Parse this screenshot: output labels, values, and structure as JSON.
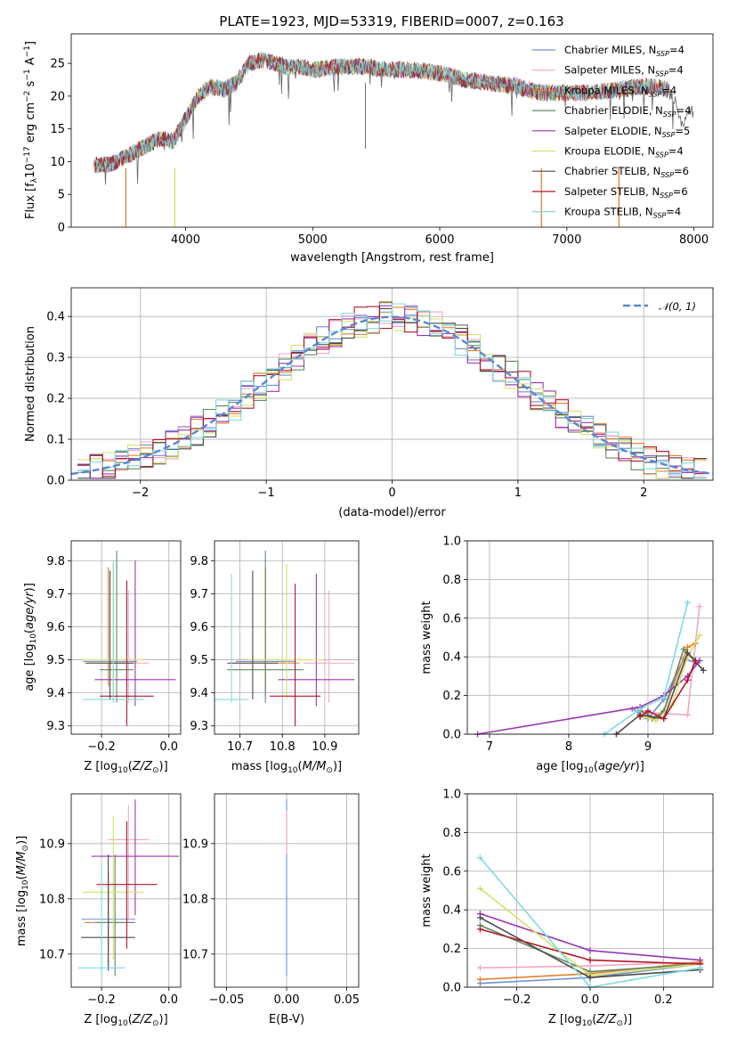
{
  "page": {
    "title": "PLATE=1923, MJD=53319, FIBERID=0007, z=0.163"
  },
  "colors": [
    "#6f8fd8",
    "#f2a5c9",
    "#e8802e",
    "#5f8b5f",
    "#9a37b0",
    "#d6e06a",
    "#4a4a4a",
    "#b2182b",
    "#7fdbe0"
  ],
  "chart_data": [
    {
      "id": "spectrum",
      "type": "line",
      "title": "PLATE=1923, MJD=53319, FIBERID=0007, z=0.163",
      "xlabel": "wavelength [Angstrom, rest frame]",
      "ylabel": "Flux [f_λ 10^-17 erg cm^-2 s^-1 A^-1]",
      "xlim": [
        3100,
        8150
      ],
      "ylim": [
        0,
        29.5
      ],
      "xticks": [
        4000,
        5000,
        6000,
        7000,
        8000
      ],
      "yticks": [
        0,
        5,
        10,
        15,
        20,
        25
      ],
      "grid": false,
      "legend_position": "top-right",
      "data_spectrum": {
        "x": [
          3280,
          3400,
          3500,
          3600,
          3700,
          3800,
          3900,
          4000,
          4100,
          4200,
          4300,
          4400,
          4500,
          4600,
          4700,
          4800,
          4900,
          5000,
          5200,
          5400,
          5600,
          5800,
          6000,
          6200,
          6400,
          6600,
          6800,
          7000,
          7200,
          7400,
          7600,
          7700,
          7800,
          7850,
          7900,
          7950,
          8000
        ],
        "y": [
          9.5,
          9.5,
          10.5,
          11.5,
          12.5,
          13.5,
          13.0,
          16.5,
          20.0,
          21.5,
          21.0,
          22.0,
          25.0,
          25.5,
          25.0,
          24.5,
          24.5,
          24.0,
          24.5,
          24.5,
          24.0,
          24.0,
          23.5,
          22.5,
          22.0,
          21.5,
          20.5,
          20.5,
          20.5,
          21.0,
          21.5,
          21.5,
          21.0,
          19.5,
          15.5,
          18.0,
          17.5
        ]
      },
      "series": [
        {
          "name": "Chabrier MILES, N_SSP=4",
          "color": "#6f8fd8"
        },
        {
          "name": "Salpeter MILES, N_SSP=4",
          "color": "#f2a5c9"
        },
        {
          "name": "Kroupa MILES, N_SSP=4",
          "color": "#e8802e"
        },
        {
          "name": "Chabrier ELODIE, N_SSP=4",
          "color": "#5f8b5f"
        },
        {
          "name": "Salpeter ELODIE, N_SSP=5",
          "color": "#9a37b0"
        },
        {
          "name": "Kroupa ELODIE, N_SSP=4",
          "color": "#d6e06a"
        },
        {
          "name": "Chabrier STELIB, N_SSP=6",
          "color": "#4a4a4a"
        },
        {
          "name": "Salpeter STELIB, N_SSP=6",
          "color": "#b2182b"
        },
        {
          "name": "Kroupa STELIB, N_SSP=4",
          "color": "#7fdbe0"
        }
      ]
    },
    {
      "id": "residuals",
      "type": "line",
      "xlabel": "(data-model)/error",
      "ylabel": "Normed distribution",
      "xlim": [
        -2.55,
        2.55
      ],
      "ylim": [
        0,
        0.47
      ],
      "xticks": [
        -2,
        -1,
        0,
        1,
        2
      ],
      "yticks": [
        0.0,
        0.1,
        0.2,
        0.3,
        0.4
      ],
      "grid": true,
      "legend_position": "top-right",
      "legend": "𝒩(0, 1)",
      "hist_centers": [
        -2.45,
        -2.35,
        -2.25,
        -2.15,
        -2.05,
        -1.95,
        -1.85,
        -1.75,
        -1.65,
        -1.55,
        -1.45,
        -1.35,
        -1.25,
        -1.15,
        -1.05,
        -0.95,
        -0.85,
        -0.75,
        -0.65,
        -0.55,
        -0.45,
        -0.35,
        -0.25,
        -0.15,
        -0.05,
        0.05,
        0.15,
        0.25,
        0.35,
        0.45,
        0.55,
        0.65,
        0.75,
        0.85,
        0.95,
        1.05,
        1.15,
        1.25,
        1.35,
        1.45,
        1.55,
        1.65,
        1.75,
        1.85,
        1.95,
        2.05,
        2.15,
        2.25,
        2.35,
        2.45
      ]
    },
    {
      "id": "age_vs_Z",
      "type": "scatter",
      "xlabel": "Z [log10(Z/Z⊙)]",
      "ylabel": "age [log10(age/yr)]",
      "xlim": [
        -0.29,
        0.035
      ],
      "ylim": [
        9.275,
        9.86
      ],
      "xticks": [
        -0.2,
        0.0
      ],
      "yticks": [
        9.3,
        9.4,
        9.5,
        9.6,
        9.7,
        9.8
      ],
      "points": [
        {
          "x": -0.175,
          "y": 9.495,
          "xerr": 0.08,
          "ylo": 9.39,
          "yhi": 9.77
        },
        {
          "x": -0.12,
          "y": 9.49,
          "xerr": 0.06,
          "ylo": 9.37,
          "yhi": 9.71
        },
        {
          "x": -0.18,
          "y": 9.49,
          "xerr": 0.07,
          "ylo": 9.42,
          "yhi": 9.78
        },
        {
          "x": -0.155,
          "y": 9.47,
          "xerr": 0.05,
          "ylo": 9.37,
          "yhi": 9.83
        },
        {
          "x": -0.1,
          "y": 9.44,
          "xerr": 0.12,
          "ylo": 9.36,
          "yhi": 9.8
        },
        {
          "x": -0.165,
          "y": 9.5,
          "xerr": 0.09,
          "ylo": 9.38,
          "yhi": 9.79
        },
        {
          "x": -0.175,
          "y": 9.49,
          "xerr": 0.07,
          "ylo": 9.38,
          "yhi": 9.77
        },
        {
          "x": -0.125,
          "y": 9.39,
          "xerr": 0.08,
          "ylo": 9.3,
          "yhi": 9.74
        },
        {
          "x": -0.165,
          "y": 9.38,
          "xerr": 0.09,
          "ylo": 9.37,
          "yhi": 9.8
        }
      ]
    },
    {
      "id": "age_vs_mass",
      "type": "scatter",
      "xlabel": "mass [log10(M/M⊙)]",
      "ylabel": "",
      "xlim": [
        10.64,
        10.98
      ],
      "ylim": [
        9.275,
        9.86
      ],
      "xticks": [
        10.7,
        10.8,
        10.9
      ],
      "yticks": [
        9.3,
        9.4,
        9.5,
        9.6,
        9.7,
        9.8
      ],
      "points": [
        {
          "x": 10.76,
          "y": 9.495,
          "xerr": 0.07,
          "ylo": 9.39,
          "yhi": 9.77
        },
        {
          "x": 10.91,
          "y": 9.49,
          "xerr": 0.06,
          "ylo": 9.37,
          "yhi": 9.71
        },
        {
          "x": 10.76,
          "y": 9.49,
          "xerr": 0.08,
          "ylo": 9.42,
          "yhi": 9.78
        },
        {
          "x": 10.76,
          "y": 9.47,
          "xerr": 0.09,
          "ylo": 9.37,
          "yhi": 9.83
        },
        {
          "x": 10.88,
          "y": 9.44,
          "xerr": 0.09,
          "ylo": 9.36,
          "yhi": 9.76
        },
        {
          "x": 10.81,
          "y": 9.5,
          "xerr": 0.09,
          "ylo": 9.38,
          "yhi": 9.79
        },
        {
          "x": 10.73,
          "y": 9.49,
          "xerr": 0.06,
          "ylo": 9.38,
          "yhi": 9.77
        },
        {
          "x": 10.83,
          "y": 9.39,
          "xerr": 0.06,
          "ylo": 9.3,
          "yhi": 9.73
        },
        {
          "x": 10.68,
          "y": 9.38,
          "xerr": 0.04,
          "ylo": 9.37,
          "yhi": 9.76
        }
      ]
    },
    {
      "id": "weight_vs_age",
      "type": "line",
      "xlabel": "age [log10(age/yr)]",
      "ylabel": "mass weight",
      "xlim": [
        6.72,
        9.82
      ],
      "ylim": [
        0,
        1.0
      ],
      "xticks": [
        7,
        8,
        9
      ],
      "yticks": [
        0.0,
        0.2,
        0.4,
        0.6,
        0.8,
        1.0
      ],
      "grid": true,
      "lines": [
        {
          "color": "#6f8fd8",
          "x": [
            8.8,
            9.0,
            9.2,
            9.45,
            9.6
          ],
          "y": [
            0.13,
            0.08,
            0.18,
            0.39,
            0.37
          ]
        },
        {
          "color": "#f2a5c9",
          "x": [
            8.85,
            9.0,
            9.5,
            9.65
          ],
          "y": [
            0.13,
            0.11,
            0.1,
            0.66
          ]
        },
        {
          "color": "#e8802e",
          "x": [
            8.9,
            9.05,
            9.2,
            9.5,
            9.6
          ],
          "y": [
            0.1,
            0.08,
            0.12,
            0.45,
            0.47
          ]
        },
        {
          "color": "#5f8b5f",
          "x": [
            8.9,
            9.1,
            9.2,
            9.45,
            9.6
          ],
          "y": [
            0.12,
            0.08,
            0.12,
            0.44,
            0.38
          ]
        },
        {
          "color": "#9a37b0",
          "x": [
            6.85,
            8.9,
            9.2,
            9.5,
            9.65
          ],
          "y": [
            0.0,
            0.14,
            0.2,
            0.3,
            0.38
          ]
        },
        {
          "color": "#d6e06a",
          "x": [
            8.95,
            9.1,
            9.3,
            9.5,
            9.65
          ],
          "y": [
            0.09,
            0.07,
            0.15,
            0.4,
            0.51
          ]
        },
        {
          "color": "#4a4a4a",
          "x": [
            8.6,
            8.9,
            9.2,
            9.5,
            9.7
          ],
          "y": [
            0.0,
            0.1,
            0.08,
            0.42,
            0.33
          ]
        },
        {
          "color": "#b2182b",
          "x": [
            8.9,
            9.0,
            9.2,
            9.5,
            9.6
          ],
          "y": [
            0.09,
            0.12,
            0.08,
            0.28,
            0.38
          ]
        },
        {
          "color": "#7fdbe0",
          "x": [
            8.45,
            8.9,
            9.2,
            9.5
          ],
          "y": [
            0.0,
            0.13,
            0.19,
            0.68
          ]
        }
      ]
    },
    {
      "id": "mass_vs_Z",
      "type": "scatter",
      "xlabel": "Z [log10(Z/Z⊙)]",
      "ylabel": "mass [log10(M/M⊙)]",
      "xlim": [
        -0.29,
        0.035
      ],
      "ylim": [
        10.64,
        10.99
      ],
      "xticks": [
        -0.2,
        0.0
      ],
      "yticks": [
        10.7,
        10.8,
        10.9
      ],
      "points": [
        {
          "x": -0.18,
          "y": 10.763,
          "xerr": 0.08,
          "ylo": 10.67,
          "yhi": 10.85
        },
        {
          "x": -0.12,
          "y": 10.907,
          "xerr": 0.06,
          "ylo": 10.76,
          "yhi": 10.97
        },
        {
          "x": -0.18,
          "y": 10.757,
          "xerr": 0.07,
          "ylo": 10.7,
          "yhi": 10.85
        },
        {
          "x": -0.16,
          "y": 10.757,
          "xerr": 0.06,
          "ylo": 10.66,
          "yhi": 10.88
        },
        {
          "x": -0.1,
          "y": 10.877,
          "xerr": 0.13,
          "ylo": 10.77,
          "yhi": 10.98
        },
        {
          "x": -0.165,
          "y": 10.812,
          "xerr": 0.09,
          "ylo": 10.69,
          "yhi": 10.95
        },
        {
          "x": -0.18,
          "y": 10.73,
          "xerr": 0.08,
          "ylo": 10.67,
          "yhi": 10.88
        },
        {
          "x": -0.125,
          "y": 10.826,
          "xerr": 0.09,
          "ylo": 10.71,
          "yhi": 10.94
        },
        {
          "x": -0.2,
          "y": 10.675,
          "xerr": 0.07,
          "ylo": 10.66,
          "yhi": 10.86
        }
      ]
    },
    {
      "id": "mass_vs_ebv",
      "type": "scatter",
      "xlabel": "E(B-V)",
      "ylabel": "",
      "xlim": [
        -0.06,
        0.06
      ],
      "ylim": [
        10.64,
        10.99
      ],
      "xticks": [
        -0.05,
        0.0,
        0.05
      ],
      "yticks": [
        10.7,
        10.8,
        10.9
      ],
      "points": [
        {
          "x": 0.0,
          "y": 10.84,
          "xerr": 0.0,
          "ylo": 10.66,
          "yhi": 10.98
        },
        {
          "x": 0.0,
          "y": 10.93,
          "xerr": 0.0,
          "ylo": 10.88,
          "yhi": 10.96
        }
      ]
    },
    {
      "id": "weight_vs_Z",
      "type": "line",
      "xlabel": "Z [log10(Z/Z⊙)]",
      "ylabel": "mass weight",
      "xlim": [
        -0.335,
        0.335
      ],
      "ylim": [
        0,
        1.0
      ],
      "xticks": [
        -0.2,
        0.0,
        0.2
      ],
      "yticks": [
        0.0,
        0.2,
        0.4,
        0.6,
        0.8,
        1.0
      ],
      "grid": true,
      "lines": [
        {
          "color": "#6f8fd8",
          "x": [
            -0.3,
            0.0,
            0.3
          ],
          "y": [
            0.02,
            0.05,
            0.12
          ]
        },
        {
          "color": "#f2a5c9",
          "x": [
            -0.3,
            0.0,
            0.3
          ],
          "y": [
            0.1,
            0.11,
            0.13
          ]
        },
        {
          "color": "#e8802e",
          "x": [
            -0.3,
            0.0,
            0.3
          ],
          "y": [
            0.04,
            0.07,
            0.13
          ]
        },
        {
          "color": "#5f8b5f",
          "x": [
            -0.3,
            0.0,
            0.3
          ],
          "y": [
            0.32,
            0.08,
            0.12
          ]
        },
        {
          "color": "#9a37b0",
          "x": [
            -0.3,
            0.0,
            0.3
          ],
          "y": [
            0.38,
            0.19,
            0.14
          ]
        },
        {
          "color": "#d6e06a",
          "x": [
            -0.3,
            0.0,
            0.3
          ],
          "y": [
            0.51,
            0.06,
            0.12
          ]
        },
        {
          "color": "#4a4a4a",
          "x": [
            -0.3,
            0.0,
            0.3
          ],
          "y": [
            0.36,
            0.05,
            0.09
          ]
        },
        {
          "color": "#b2182b",
          "x": [
            -0.3,
            0.0,
            0.3
          ],
          "y": [
            0.3,
            0.14,
            0.12
          ]
        },
        {
          "color": "#7fdbe0",
          "x": [
            -0.3,
            0.0,
            0.3
          ],
          "y": [
            0.67,
            0.0,
            0.1
          ]
        }
      ]
    }
  ]
}
